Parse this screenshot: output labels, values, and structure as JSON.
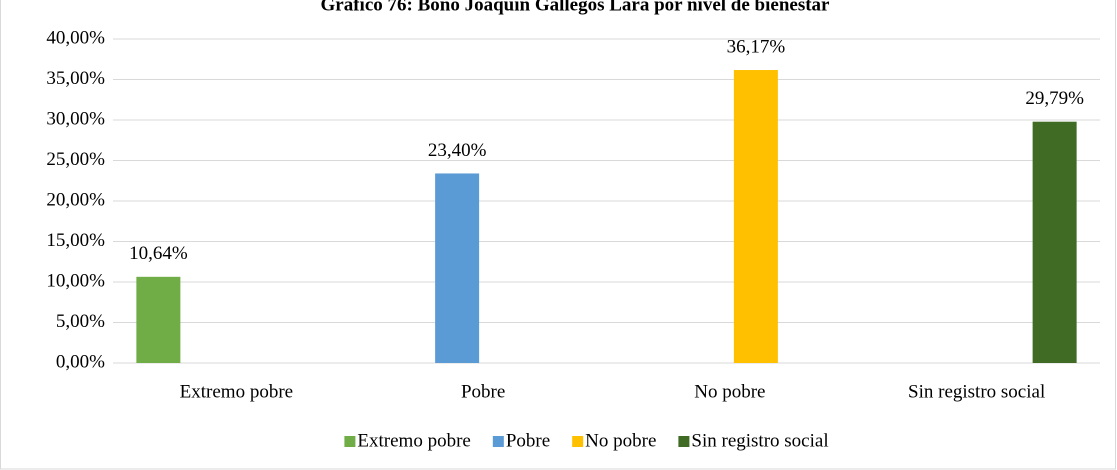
{
  "chart_data": {
    "type": "bar",
    "title": "Gráfico 76: Bono Joaquín Gallegos Lara por nivel de bienestar",
    "categories": [
      "Extremo pobre",
      "Pobre",
      "No pobre",
      "Sin registro social"
    ],
    "series": [
      {
        "name": "Extremo pobre",
        "color": "#70ad47",
        "values": [
          10.64,
          null,
          null,
          null
        ],
        "value_labels": [
          "10,64%",
          null,
          null,
          null
        ]
      },
      {
        "name": "Pobre",
        "color": "#5b9bd5",
        "values": [
          null,
          23.4,
          null,
          null
        ],
        "value_labels": [
          null,
          "23,40%",
          null,
          null
        ]
      },
      {
        "name": "No pobre",
        "color": "#ffc000",
        "values": [
          null,
          null,
          36.17,
          null
        ],
        "value_labels": [
          null,
          null,
          "36,17%",
          null
        ]
      },
      {
        "name": "Sin registro social",
        "color": "#3f6b25",
        "values": [
          null,
          null,
          null,
          29.79
        ],
        "value_labels": [
          null,
          null,
          null,
          "29,79%"
        ]
      }
    ],
    "ylim": [
      0,
      40
    ],
    "yticks": [
      {
        "value": 0,
        "label": "0,00%"
      },
      {
        "value": 5,
        "label": "5,00%"
      },
      {
        "value": 10,
        "label": "10,00%"
      },
      {
        "value": 15,
        "label": "15,00%"
      },
      {
        "value": 20,
        "label": "20,00%"
      },
      {
        "value": 25,
        "label": "25,00%"
      },
      {
        "value": 30,
        "label": "30,00%"
      },
      {
        "value": 35,
        "label": "35,00%"
      },
      {
        "value": 40,
        "label": "40,00%"
      }
    ],
    "grid": true,
    "legend": "bottom"
  }
}
